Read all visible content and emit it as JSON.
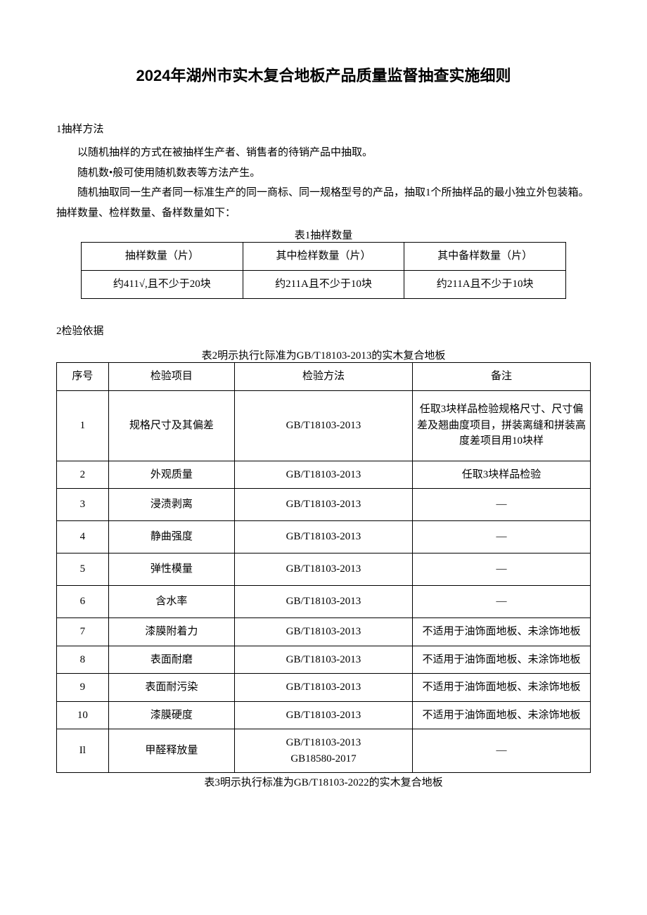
{
  "title": "2024年湖州市实木复合地板产品质量监督抽查实施细则",
  "title_fontsize": 22,
  "section1": {
    "heading": "1抽样方法",
    "p1": "以随机抽样的方式在被抽样生产者、销售者的待销产品中抽取。",
    "p2": "随机数•般可使用随机数表等方法产生。",
    "p3": "随机抽取同一生产者同一标准生产的同一商标、同一规格型号的产品，抽取1个所抽样品的最小独立外包装箱。抽样数量、检样数量、备样数量如下："
  },
  "body_fontsize": 15,
  "table1": {
    "caption": "表1抽样数量",
    "h1": "抽样数量（片）",
    "h2": "其中检样数量（片）",
    "h3": "其中备样数量（片）",
    "v1": "约411√,且不少于20块",
    "v2": "约211A且不少于10块",
    "v3": "约211A且不少于10块"
  },
  "section2_heading": "2检验依据",
  "table2": {
    "caption": "表2明示执行ﾋ际准为GB/T18103-2013的实木复合地板",
    "col_seq": "序号",
    "col_item": "检验项目",
    "col_method": "检验方法",
    "col_note": "备注",
    "rows": [
      {
        "seq": "1",
        "item": "规格尺寸及其偏差",
        "method": "GB/T18103-2013",
        "note": "任取3块样品检验规格尺寸、尺寸偏差及翘曲度项目，拼装离缝和拼装高度差项目用10块样"
      },
      {
        "seq": "2",
        "item": "外观质量",
        "method": "GB/T18103-2013",
        "note": "任取3块样品检验"
      },
      {
        "seq": "3",
        "item": "浸渍剥离",
        "method": "GB/T18103-2013",
        "note": "—"
      },
      {
        "seq": "4",
        "item": "静曲强度",
        "method": "GB/T18103-2013",
        "note": "—"
      },
      {
        "seq": "5",
        "item": "弹性模量",
        "method": "GB/T18103-2013",
        "note": "—"
      },
      {
        "seq": "6",
        "item": "含水率",
        "method": "GB/T18103-2013",
        "note": "—"
      },
      {
        "seq": "7",
        "item": "漆膜附着力",
        "method": "GB/T18103-2013",
        "note": "不适用于油饰面地板、未涂饰地板"
      },
      {
        "seq": "8",
        "item": "表面耐磨",
        "method": "GB/T18103-2013",
        "note": "不适用于油饰面地板、未涂饰地板"
      },
      {
        "seq": "9",
        "item": "表面耐污染",
        "method": "GB/T18103-2013",
        "note": "不适用于油饰面地板、未涂饰地板"
      },
      {
        "seq": "10",
        "item": "漆膜硬度",
        "method": "GB/T18103-2013",
        "note": "不适用于油饰面地板、未涂饰地板"
      },
      {
        "seq": "Il",
        "item": "甲醛释放量",
        "method": "GB/T18103-2013\nGB18580-2017",
        "note": "—"
      }
    ]
  },
  "table3_caption": "表3明示执行标准为GB/T18103-2022的实木复合地板"
}
